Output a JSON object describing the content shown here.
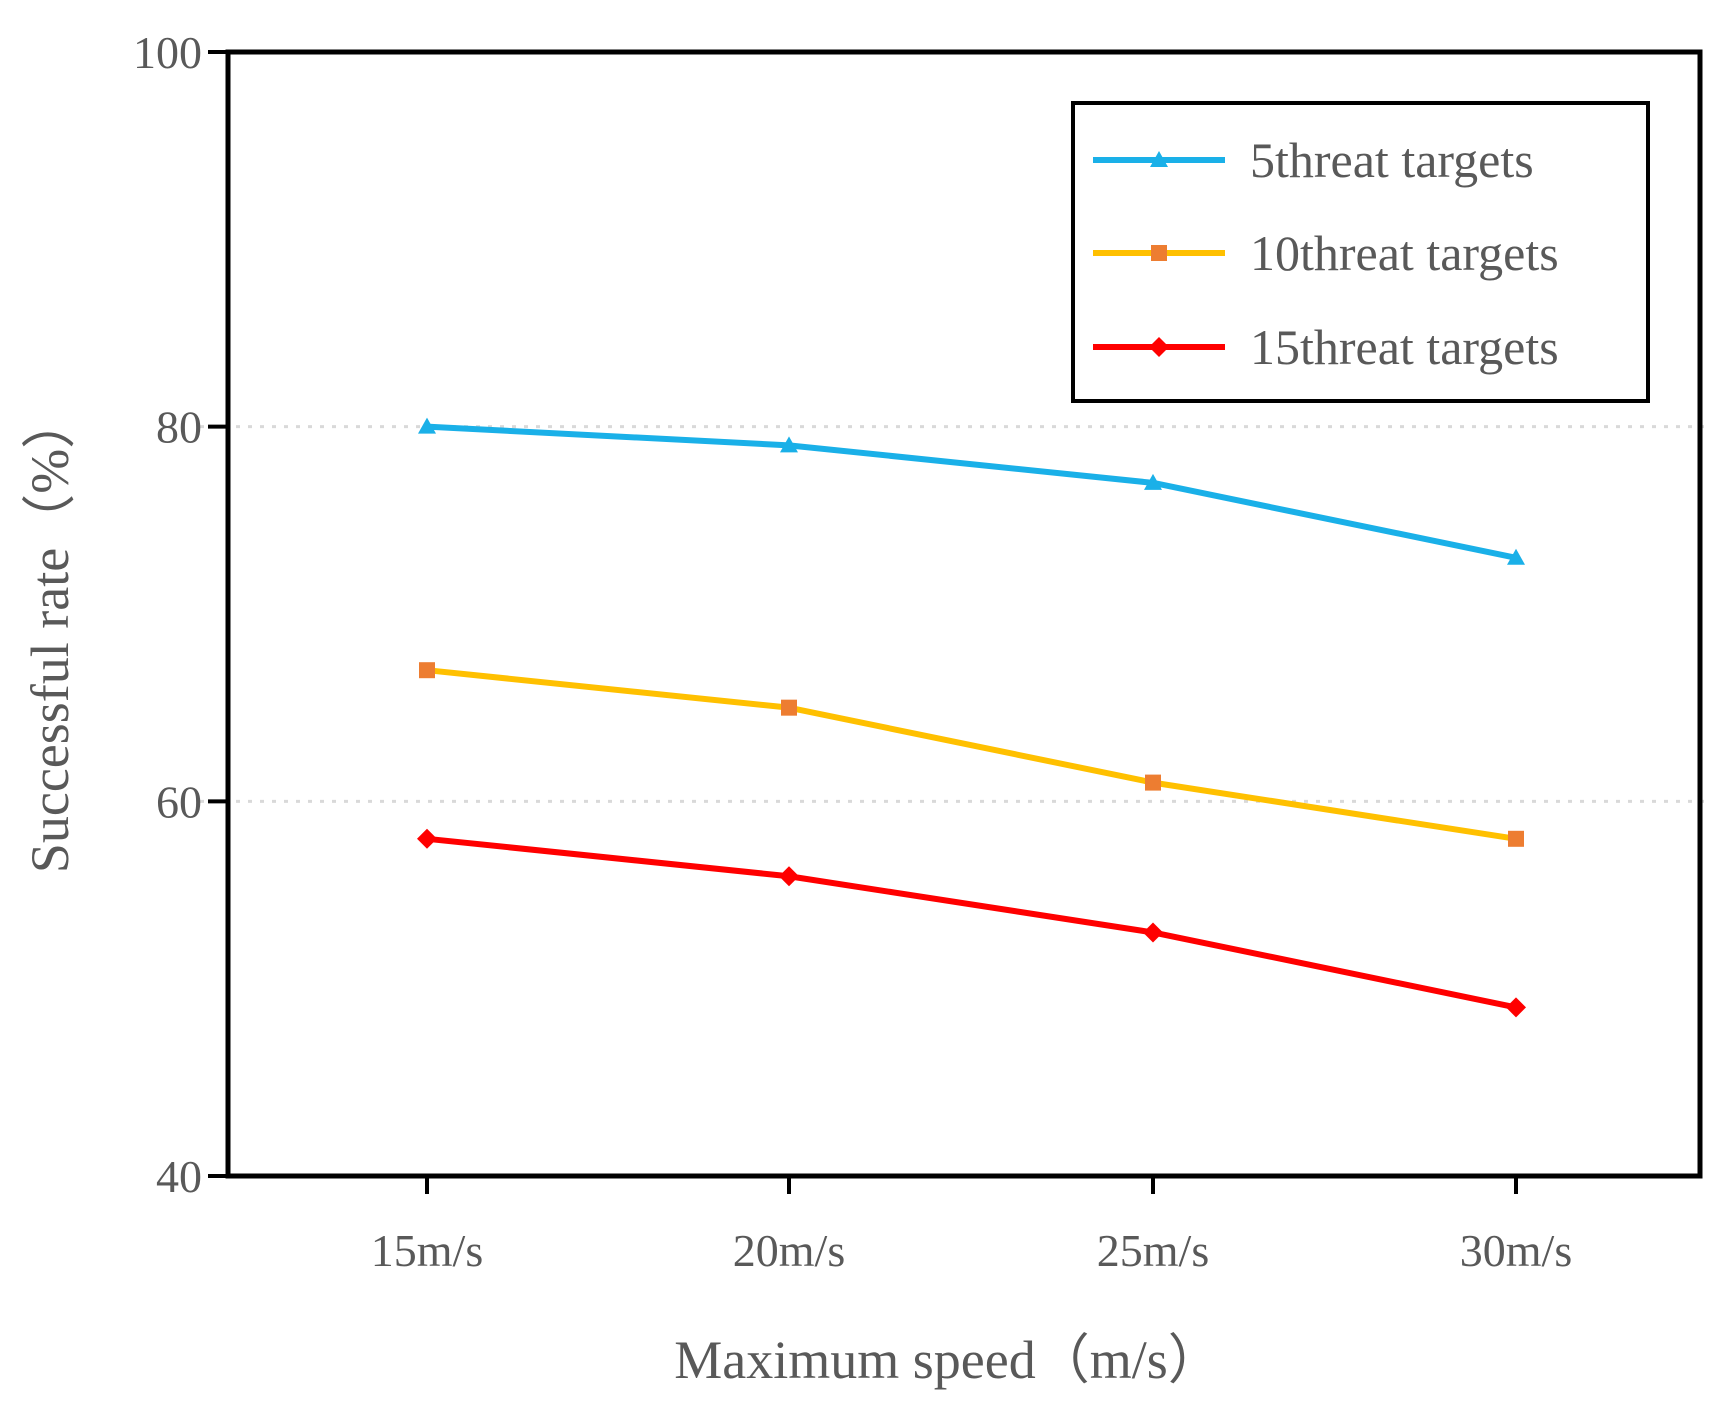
{
  "chart_data": {
    "type": "line",
    "title": "",
    "xlabel": "Maximum speed（m/s）",
    "ylabel": "Successful rate（%）",
    "categories": [
      "15m/s",
      "20m/s",
      "25m/s",
      "30m/s"
    ],
    "ylim": [
      40,
      100
    ],
    "yticks": [
      40,
      60,
      80,
      100
    ],
    "ytick_labels": [
      "40",
      "60",
      "80",
      "100"
    ],
    "grid": "horizontal dotted at 60 and 80",
    "legend_position": "top-right",
    "series": [
      {
        "name": "5threat targets",
        "values": [
          80,
          79,
          77,
          73
        ],
        "color": "#1ab0e8",
        "marker_color": "#1ab0e8",
        "marker": "triangle"
      },
      {
        "name": "10threat targets",
        "values": [
          67,
          65,
          61,
          58
        ],
        "color": "#ffc000",
        "marker_color": "#ed7d31",
        "marker": "square"
      },
      {
        "name": "15threat targets",
        "values": [
          58,
          56,
          53,
          49
        ],
        "color": "#ff0000",
        "marker_color": "#ff0000",
        "marker": "diamond"
      }
    ]
  }
}
